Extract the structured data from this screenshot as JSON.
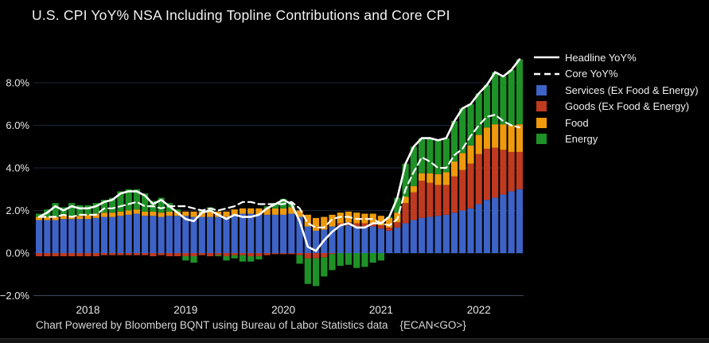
{
  "title": "U.S. CPI YoY% NSA Including Topline Contributions and Core CPI",
  "footer": "Chart Powered by Bloomberg BQNT using Bureau of Labor Statistics data    {ECAN<GO>}",
  "colors": {
    "background": "#000000",
    "title_text": "#f2f2f2",
    "axis_label": "#e8e8e8",
    "gridline": "#1c2636",
    "baseline": "#3e4a5c",
    "headline_line": "#ffffff",
    "core_line": "#ffffff",
    "services": "#3d63c6",
    "goods": "#c03a20",
    "food": "#ee9a0c",
    "energy": "#1f9227",
    "footer_text": "#d6d6d6",
    "legend_text": "#f0f0f0"
  },
  "legend": {
    "position": "top-right",
    "items": [
      {
        "id": "headline",
        "label": "Headline YoY%",
        "swatch": "line-solid"
      },
      {
        "id": "core",
        "label": "Core YoY%",
        "swatch": "line-dashed"
      },
      {
        "id": "services",
        "label": "Services (Ex Food & Energy)",
        "swatch": "square",
        "color_key": "services"
      },
      {
        "id": "goods",
        "label": "Goods (Ex Food & Energy)",
        "swatch": "square",
        "color_key": "goods"
      },
      {
        "id": "food",
        "label": "Food",
        "swatch": "square",
        "color_key": "food"
      },
      {
        "id": "energy",
        "label": "Energy",
        "swatch": "square",
        "color_key": "energy"
      }
    ]
  },
  "chart_data": {
    "type": "bar",
    "subtype": "stacked-bars-with-line-overlays",
    "grid": "horizontal-only",
    "legend_position": "top-right",
    "ylim": [
      -2.4,
      9.45
    ],
    "y_ticks": [
      {
        "value": 8,
        "label": "8.0%"
      },
      {
        "value": 6,
        "label": "6.0%"
      },
      {
        "value": 4,
        "label": "4.0%"
      },
      {
        "value": 2,
        "label": "2.0%"
      },
      {
        "value": 0,
        "label": "0.0%"
      },
      {
        "value": -2,
        "label": "−2.0%"
      }
    ],
    "x_ticks": [
      {
        "index": 6,
        "label": "2018"
      },
      {
        "index": 18,
        "label": "2019"
      },
      {
        "index": 30,
        "label": "2020"
      },
      {
        "index": 42,
        "label": "2021"
      },
      {
        "index": 54,
        "label": "2022"
      }
    ],
    "x": [
      "2017-07",
      "2017-08",
      "2017-09",
      "2017-10",
      "2017-11",
      "2017-12",
      "2018-01",
      "2018-02",
      "2018-03",
      "2018-04",
      "2018-05",
      "2018-06",
      "2018-07",
      "2018-08",
      "2018-09",
      "2018-10",
      "2018-11",
      "2018-12",
      "2019-01",
      "2019-02",
      "2019-03",
      "2019-04",
      "2019-05",
      "2019-06",
      "2019-07",
      "2019-08",
      "2019-09",
      "2019-10",
      "2019-11",
      "2019-12",
      "2020-01",
      "2020-02",
      "2020-03",
      "2020-04",
      "2020-05",
      "2020-06",
      "2020-07",
      "2020-08",
      "2020-09",
      "2020-10",
      "2020-11",
      "2020-12",
      "2021-01",
      "2021-02",
      "2021-03",
      "2021-04",
      "2021-05",
      "2021-06",
      "2021-07",
      "2021-08",
      "2021-09",
      "2021-10",
      "2021-11",
      "2021-12",
      "2022-01",
      "2022-02",
      "2022-03",
      "2022-04",
      "2022-05",
      "2022-06"
    ],
    "series": [
      {
        "name": "Headline YoY%",
        "type": "line",
        "color_key": "headline_line",
        "values": [
          1.7,
          1.9,
          2.2,
          2.0,
          2.2,
          2.1,
          2.1,
          2.2,
          2.4,
          2.5,
          2.8,
          2.9,
          2.9,
          2.7,
          2.3,
          2.5,
          2.2,
          1.9,
          1.6,
          1.5,
          1.9,
          2.0,
          1.8,
          1.6,
          1.8,
          1.7,
          1.7,
          1.8,
          2.1,
          2.3,
          2.5,
          2.3,
          1.5,
          0.3,
          0.1,
          0.6,
          1.0,
          1.3,
          1.4,
          1.2,
          1.2,
          1.4,
          1.4,
          1.7,
          2.6,
          4.2,
          5.0,
          5.4,
          5.4,
          5.3,
          5.4,
          6.2,
          6.8,
          7.0,
          7.5,
          7.9,
          8.5,
          8.3,
          8.6,
          9.1
        ]
      },
      {
        "name": "Core YoY%",
        "type": "line-dashed",
        "color_key": "core_line",
        "values": [
          1.7,
          1.7,
          1.7,
          1.8,
          1.7,
          1.8,
          1.8,
          1.8,
          2.1,
          2.1,
          2.2,
          2.3,
          2.4,
          2.2,
          2.2,
          2.1,
          2.2,
          2.2,
          2.2,
          2.1,
          2.0,
          2.1,
          2.0,
          2.1,
          2.2,
          2.4,
          2.4,
          2.3,
          2.3,
          2.3,
          2.3,
          2.4,
          2.1,
          1.4,
          1.2,
          1.2,
          1.6,
          1.7,
          1.7,
          1.6,
          1.6,
          1.6,
          1.4,
          1.3,
          1.6,
          3.0,
          3.8,
          4.5,
          4.3,
          4.0,
          4.0,
          4.6,
          4.9,
          5.5,
          6.0,
          6.4,
          6.5,
          6.2,
          6.0,
          5.9
        ]
      },
      {
        "name": "Services (Ex Food & Energy)",
        "type": "bar",
        "color_key": "services",
        "values": [
          1.55,
          1.55,
          1.55,
          1.6,
          1.6,
          1.6,
          1.6,
          1.65,
          1.7,
          1.7,
          1.75,
          1.8,
          1.85,
          1.75,
          1.75,
          1.7,
          1.75,
          1.75,
          1.75,
          1.7,
          1.7,
          1.7,
          1.7,
          1.7,
          1.8,
          1.85,
          1.85,
          1.8,
          1.8,
          1.8,
          1.8,
          1.85,
          1.7,
          1.25,
          1.05,
          1.1,
          1.25,
          1.3,
          1.3,
          1.25,
          1.25,
          1.25,
          1.15,
          1.05,
          1.2,
          1.4,
          1.55,
          1.65,
          1.7,
          1.75,
          1.8,
          1.9,
          2.0,
          2.1,
          2.3,
          2.5,
          2.6,
          2.75,
          2.9,
          3.0
        ]
      },
      {
        "name": "Goods (Ex Food & Energy)",
        "type": "bar",
        "color_key": "goods",
        "values": [
          -0.15,
          -0.15,
          -0.15,
          -0.15,
          -0.15,
          -0.15,
          -0.15,
          -0.15,
          -0.1,
          -0.1,
          -0.1,
          -0.1,
          -0.1,
          -0.1,
          -0.15,
          -0.1,
          -0.15,
          -0.15,
          -0.15,
          -0.15,
          -0.1,
          -0.15,
          -0.1,
          -0.15,
          -0.1,
          -0.1,
          -0.15,
          -0.15,
          -0.1,
          -0.05,
          -0.05,
          -0.05,
          -0.1,
          -0.25,
          -0.25,
          -0.2,
          -0.05,
          0.1,
          0.15,
          0.15,
          0.15,
          0.15,
          0.15,
          0.15,
          0.25,
          0.95,
          1.3,
          1.75,
          1.6,
          1.45,
          1.4,
          1.7,
          1.9,
          2.1,
          2.35,
          2.4,
          2.35,
          2.1,
          1.85,
          1.75
        ]
      },
      {
        "name": "Food",
        "type": "bar",
        "color_key": "food",
        "values": [
          0.15,
          0.15,
          0.15,
          0.15,
          0.15,
          0.15,
          0.2,
          0.2,
          0.2,
          0.2,
          0.2,
          0.2,
          0.2,
          0.2,
          0.2,
          0.2,
          0.2,
          0.2,
          0.2,
          0.25,
          0.25,
          0.25,
          0.25,
          0.25,
          0.25,
          0.25,
          0.25,
          0.3,
          0.3,
          0.3,
          0.3,
          0.3,
          0.3,
          0.55,
          0.6,
          0.6,
          0.55,
          0.5,
          0.5,
          0.5,
          0.45,
          0.45,
          0.45,
          0.45,
          0.45,
          0.3,
          0.3,
          0.35,
          0.45,
          0.5,
          0.6,
          0.7,
          0.8,
          0.85,
          0.9,
          1.0,
          1.1,
          1.2,
          1.25,
          1.3
        ]
      },
      {
        "name": "Energy",
        "type": "bar",
        "color_key": "energy",
        "values": [
          0.15,
          0.35,
          0.65,
          0.4,
          0.6,
          0.5,
          0.45,
          0.5,
          0.6,
          0.7,
          0.95,
          1.0,
          0.95,
          0.85,
          0.5,
          0.7,
          0.4,
          0.1,
          -0.2,
          -0.3,
          0.05,
          0.2,
          -0.05,
          -0.2,
          -0.15,
          -0.3,
          -0.25,
          -0.15,
          0.1,
          0.25,
          0.45,
          0.2,
          -0.4,
          -1.2,
          -1.3,
          -0.9,
          -0.75,
          -0.6,
          -0.55,
          -0.7,
          -0.65,
          -0.45,
          -0.35,
          0.05,
          0.7,
          1.55,
          1.85,
          1.65,
          1.65,
          1.6,
          1.6,
          1.9,
          2.1,
          1.95,
          1.95,
          2.0,
          2.45,
          2.25,
          2.6,
          3.05
        ]
      }
    ]
  }
}
